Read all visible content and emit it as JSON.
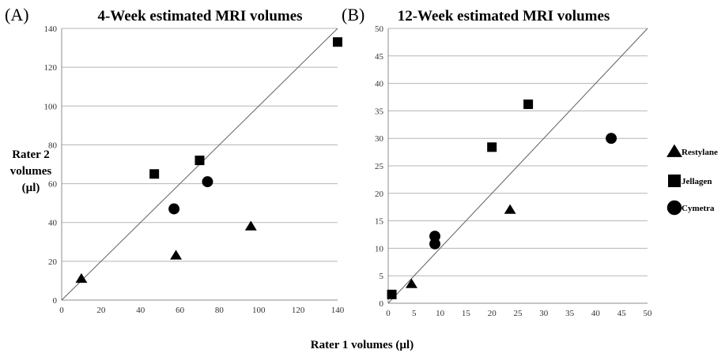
{
  "figure": {
    "xlabel": "Rater 1 volumes (µl)",
    "ylabel_lines": [
      "Rater 2",
      "volumes",
      "(µl)"
    ]
  },
  "legend": [
    {
      "label": "Restylane",
      "marker": "triangle"
    },
    {
      "label": "Jellagen",
      "marker": "square"
    },
    {
      "label": "Cymetra",
      "marker": "circle"
    }
  ],
  "chart_data": [
    {
      "type": "scatter",
      "panel_label": "(A)",
      "title": "4-Week estimated MRI volumes",
      "xlim": [
        0,
        140
      ],
      "ylim": [
        0,
        140
      ],
      "xticks": [
        0,
        20,
        40,
        60,
        80,
        100,
        120,
        140
      ],
      "yticks": [
        0,
        20,
        40,
        60,
        80,
        100,
        120,
        140
      ],
      "grid": "horizontal",
      "identity_line": true,
      "series": [
        {
          "name": "Restylane",
          "marker": "triangle",
          "x": [
            10,
            58,
            96
          ],
          "y": [
            11,
            23,
            38
          ]
        },
        {
          "name": "Jellagen",
          "marker": "square",
          "x": [
            47,
            70,
            140
          ],
          "y": [
            65,
            72,
            133
          ]
        },
        {
          "name": "Cymetra",
          "marker": "circle",
          "x": [
            57,
            74
          ],
          "y": [
            47,
            61
          ]
        }
      ]
    },
    {
      "type": "scatter",
      "panel_label": "(B)",
      "title": "12-Week estimated MRI volumes",
      "xlim": [
        0,
        50
      ],
      "ylim": [
        0,
        50
      ],
      "xticks": [
        0,
        5,
        10,
        15,
        20,
        25,
        30,
        35,
        40,
        45,
        50
      ],
      "yticks": [
        0,
        5,
        10,
        15,
        20,
        25,
        30,
        35,
        40,
        45,
        50
      ],
      "grid": "horizontal",
      "identity_line": true,
      "series": [
        {
          "name": "Restylane",
          "marker": "triangle",
          "x": [
            4.5,
            23.5
          ],
          "y": [
            3.5,
            17
          ]
        },
        {
          "name": "Jellagen",
          "marker": "square",
          "x": [
            0.7,
            20,
            27
          ],
          "y": [
            1.6,
            28.4,
            36.2
          ]
        },
        {
          "name": "Cymetra",
          "marker": "circle",
          "x": [
            9,
            9,
            43
          ],
          "y": [
            12.2,
            10.8,
            30
          ]
        }
      ]
    }
  ]
}
